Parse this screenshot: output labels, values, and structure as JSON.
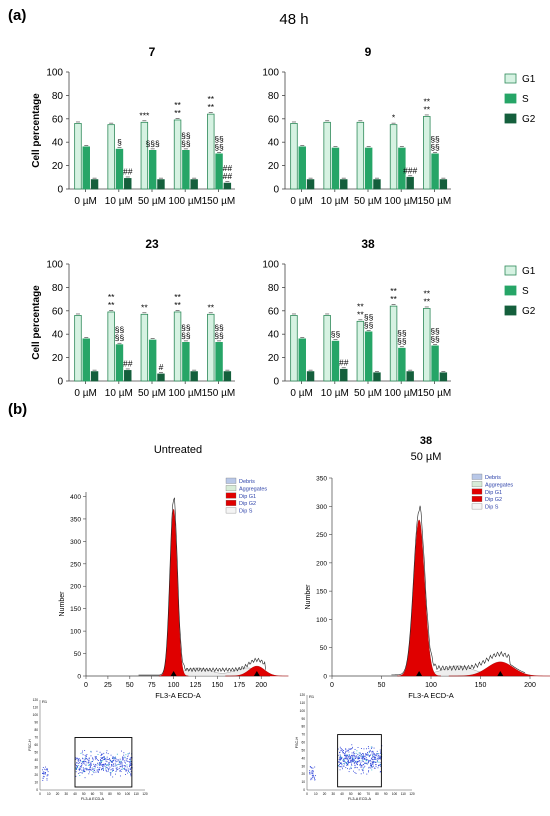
{
  "panel_a_label": "(a)",
  "panel_b_label": "(b)",
  "timepoint": "48 h",
  "ylabel": "Cell percentage",
  "legend": [
    "G1",
    "S",
    "G2"
  ],
  "colors": {
    "G1": "#d6f2e2",
    "G1_edge": "#2f8a5a",
    "S": "#26a567",
    "G2": "#145f3c",
    "red": "#e00000"
  },
  "histograms": [
    {
      "title": "Untreated",
      "subtitle": "",
      "ylabel": "Number",
      "xlabel": "FL3-A ECD-A",
      "yticks": [
        "0",
        "50",
        "100",
        "150",
        "200",
        "250",
        "300",
        "350",
        "400"
      ],
      "xticks": [
        "0",
        "25",
        "50",
        "75",
        "100",
        "125",
        "150",
        "175",
        "200"
      ],
      "legend": [
        "Debris",
        "Aggregates",
        "Dip G1",
        "Dip G2",
        "Dip S"
      ],
      "dot_label": "R1",
      "dot_ylabel": "FSC-H",
      "dot_xlabel": "FL3-A ECD-A",
      "dot_xticks": [
        "0",
        "10",
        "20",
        "30",
        "40",
        "50",
        "60",
        "70",
        "80",
        "90",
        "100",
        "110",
        "120"
      ],
      "dot_yticks": [
        "0",
        "10",
        "20",
        "30",
        "40",
        "50",
        "60",
        "70",
        "80",
        "90",
        "100",
        "110",
        "120"
      ]
    },
    {
      "title": "38",
      "subtitle": "50 µM",
      "ylabel": "Number",
      "xlabel": "FL3-A ECD-A",
      "yticks": [
        "0",
        "50",
        "100",
        "150",
        "200",
        "250",
        "300",
        "350"
      ],
      "xticks": [
        "0",
        "50",
        "100",
        "150",
        "200"
      ],
      "legend": [
        "Debris",
        "Aggregates",
        "Dip G1",
        "Dip G2",
        "Dip S"
      ],
      "dot_label": "R1",
      "dot_ylabel": "FSC-H",
      "dot_xlabel": "FL3-A ECD-A",
      "dot_xticks": [
        "0",
        "10",
        "20",
        "30",
        "40",
        "50",
        "60",
        "70",
        "80",
        "90",
        "100",
        "110",
        "120"
      ],
      "dot_yticks": [
        "0",
        "10",
        "20",
        "30",
        "40",
        "50",
        "60",
        "70",
        "80",
        "90",
        "100",
        "110",
        "120"
      ]
    }
  ],
  "chart_data": [
    {
      "type": "bar",
      "title": "7",
      "categories": [
        "0 µM",
        "10 µM",
        "50 µM",
        "100 µM",
        "150 µM"
      ],
      "ylim": [
        0,
        100
      ],
      "yticks": [
        "0",
        "20",
        "40",
        "60",
        "80",
        "100"
      ],
      "series": [
        {
          "name": "G1",
          "values": [
            56,
            55,
            57,
            59,
            64
          ]
        },
        {
          "name": "S",
          "values": [
            36,
            34,
            33,
            33,
            30
          ]
        },
        {
          "name": "G2",
          "values": [
            8,
            9,
            8,
            8,
            5
          ]
        }
      ],
      "annotations": [
        [
          "",
          "",
          "",
          ""
        ],
        [
          "",
          "§",
          "##",
          ""
        ],
        [
          "***",
          "§§§",
          "",
          ""
        ],
        [
          "**\n**",
          "§§\n§§",
          "",
          ""
        ],
        [
          "**\n**",
          "§§\n§§",
          "##\n##",
          ""
        ]
      ]
    },
    {
      "type": "bar",
      "title": "9",
      "categories": [
        "0 µM",
        "10 µM",
        "50 µM",
        "100 µM",
        "150 µM"
      ],
      "ylim": [
        0,
        100
      ],
      "yticks": [
        "0",
        "20",
        "40",
        "60",
        "80",
        "100"
      ],
      "series": [
        {
          "name": "G1",
          "values": [
            56,
            57,
            57,
            55,
            62
          ]
        },
        {
          "name": "S",
          "values": [
            36,
            35,
            35,
            35,
            30
          ]
        },
        {
          "name": "G2",
          "values": [
            8,
            8,
            8,
            10,
            8
          ]
        }
      ],
      "annotations": [
        [
          "",
          "",
          ""
        ],
        [
          "",
          "",
          ""
        ],
        [
          "",
          "",
          ""
        ],
        [
          "*",
          "",
          "###"
        ],
        [
          "**\n**",
          "§§\n§§",
          ""
        ]
      ]
    },
    {
      "type": "bar",
      "title": "23",
      "categories": [
        "0 µM",
        "10 µM",
        "50 µM",
        "100 µM",
        "150 µM"
      ],
      "ylim": [
        0,
        100
      ],
      "yticks": [
        "0",
        "20",
        "40",
        "60",
        "80",
        "100"
      ],
      "series": [
        {
          "name": "G1",
          "values": [
            56,
            59,
            57,
            59,
            57
          ]
        },
        {
          "name": "S",
          "values": [
            36,
            31,
            35,
            33,
            33
          ]
        },
        {
          "name": "G2",
          "values": [
            8,
            9,
            6,
            8,
            8
          ]
        }
      ],
      "annotations": [
        [
          "",
          "",
          ""
        ],
        [
          "**\n**",
          "§§\n§§",
          "##"
        ],
        [
          "**",
          "",
          "#"
        ],
        [
          "**\n**",
          "§§\n§§",
          ""
        ],
        [
          "**",
          "§§\n§§",
          ""
        ]
      ]
    },
    {
      "type": "bar",
      "title": "38",
      "categories": [
        "0 µM",
        "10 µM",
        "50 µM",
        "100 µM",
        "150 µM"
      ],
      "ylim": [
        0,
        100
      ],
      "yticks": [
        "0",
        "20",
        "40",
        "60",
        "80",
        "100"
      ],
      "series": [
        {
          "name": "G1",
          "values": [
            56,
            56,
            51,
            64,
            62
          ]
        },
        {
          "name": "S",
          "values": [
            36,
            34,
            42,
            28,
            30
          ]
        },
        {
          "name": "G2",
          "values": [
            8,
            10,
            7,
            8,
            7
          ]
        }
      ],
      "annotations": [
        [
          "",
          "",
          ""
        ],
        [
          "",
          "§§",
          "##"
        ],
        [
          "**\n**",
          "§§\n§§",
          ""
        ],
        [
          "**\n**",
          "§§\n§§",
          ""
        ],
        [
          "**\n**",
          "§§\n§§",
          ""
        ]
      ]
    }
  ]
}
